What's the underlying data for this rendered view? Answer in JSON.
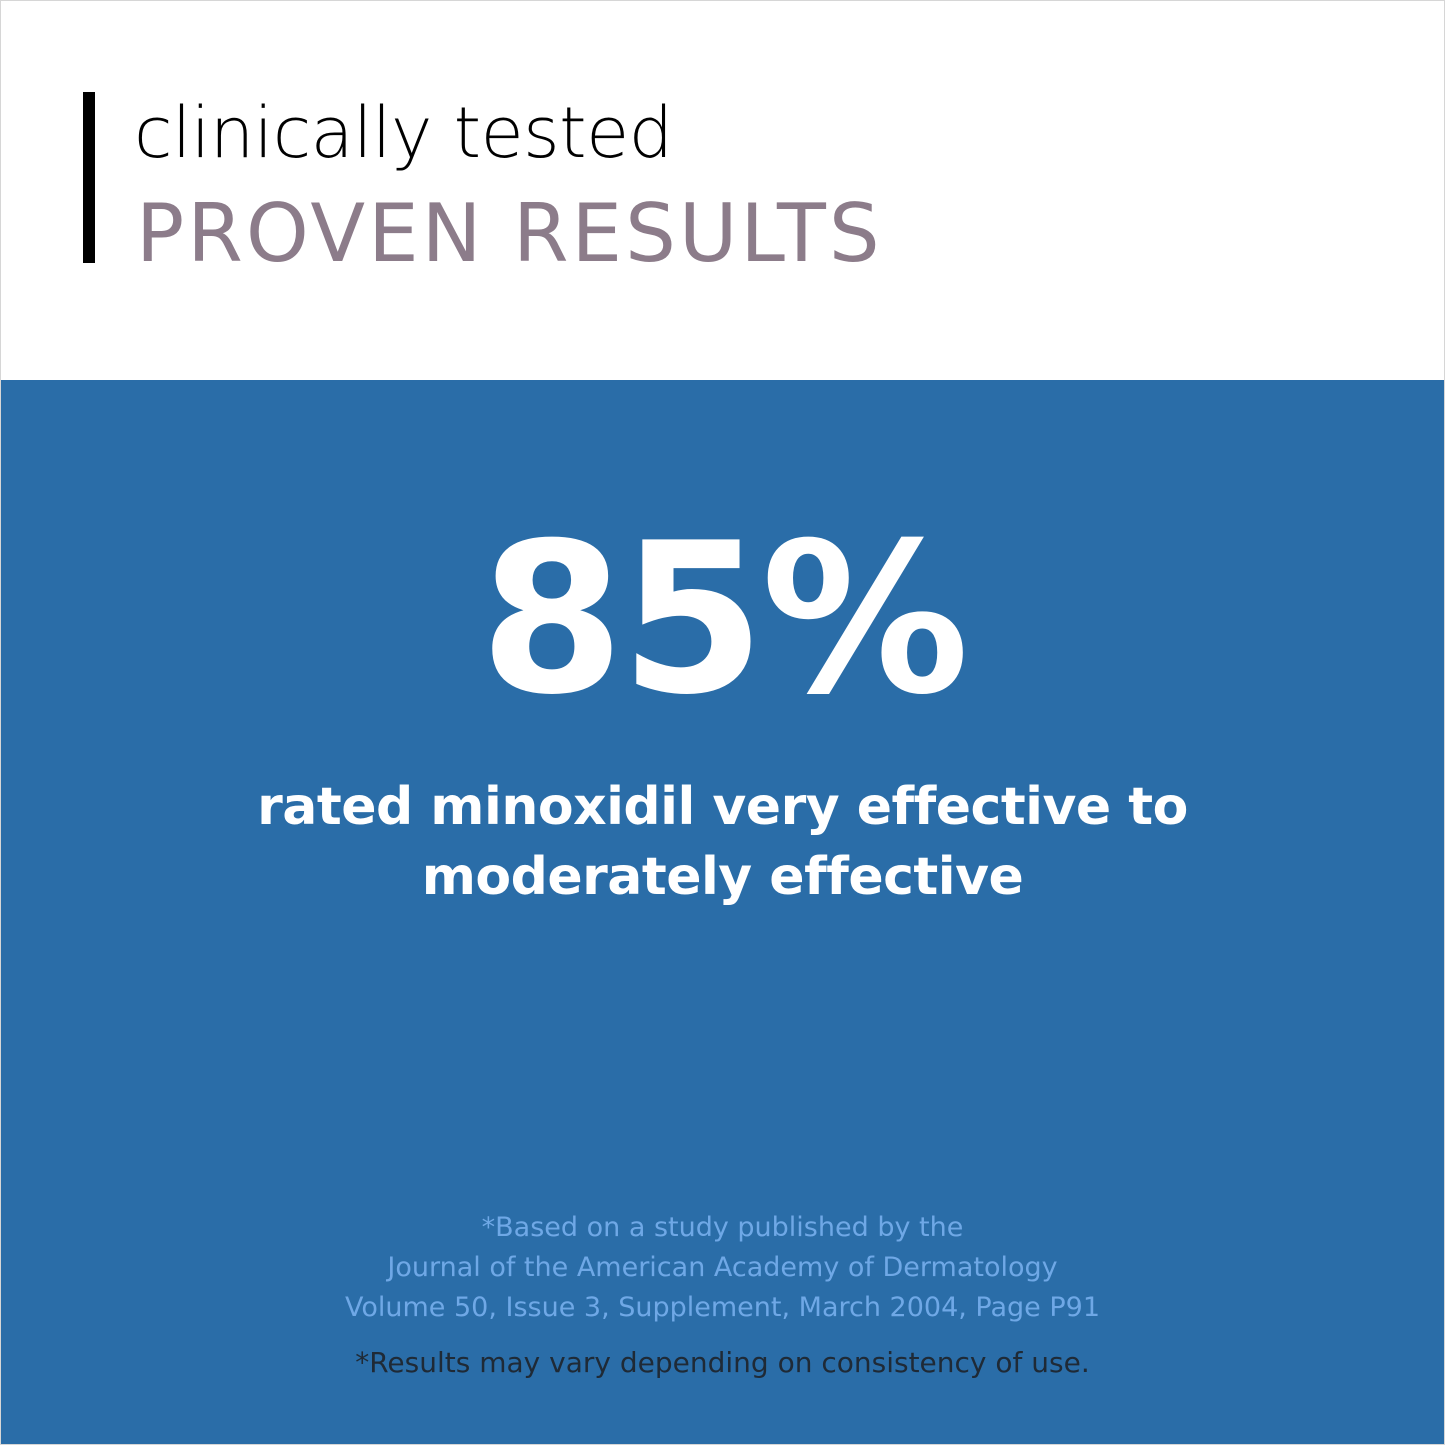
{
  "header": {
    "line1": "clinically tested",
    "line2": "PROVEN RESULTS"
  },
  "stat": {
    "value": "85%",
    "caption": [
      "rated minoxidil very effective to",
      "moderately effective"
    ]
  },
  "citation": [
    "*Based on a study published by the",
    "Journal of the American Academy of Dermatology",
    "Volume 50, Issue 3, Supplement, March 2004, Page P91"
  ],
  "disclaimer": "*Results may vary depending on consistency of use.",
  "colors": {
    "panel_background": "#2a6da8",
    "subheading": "#8c7c8a",
    "citation_text": "#6fa8e6",
    "disclaimer_text": "#1f2a36"
  }
}
